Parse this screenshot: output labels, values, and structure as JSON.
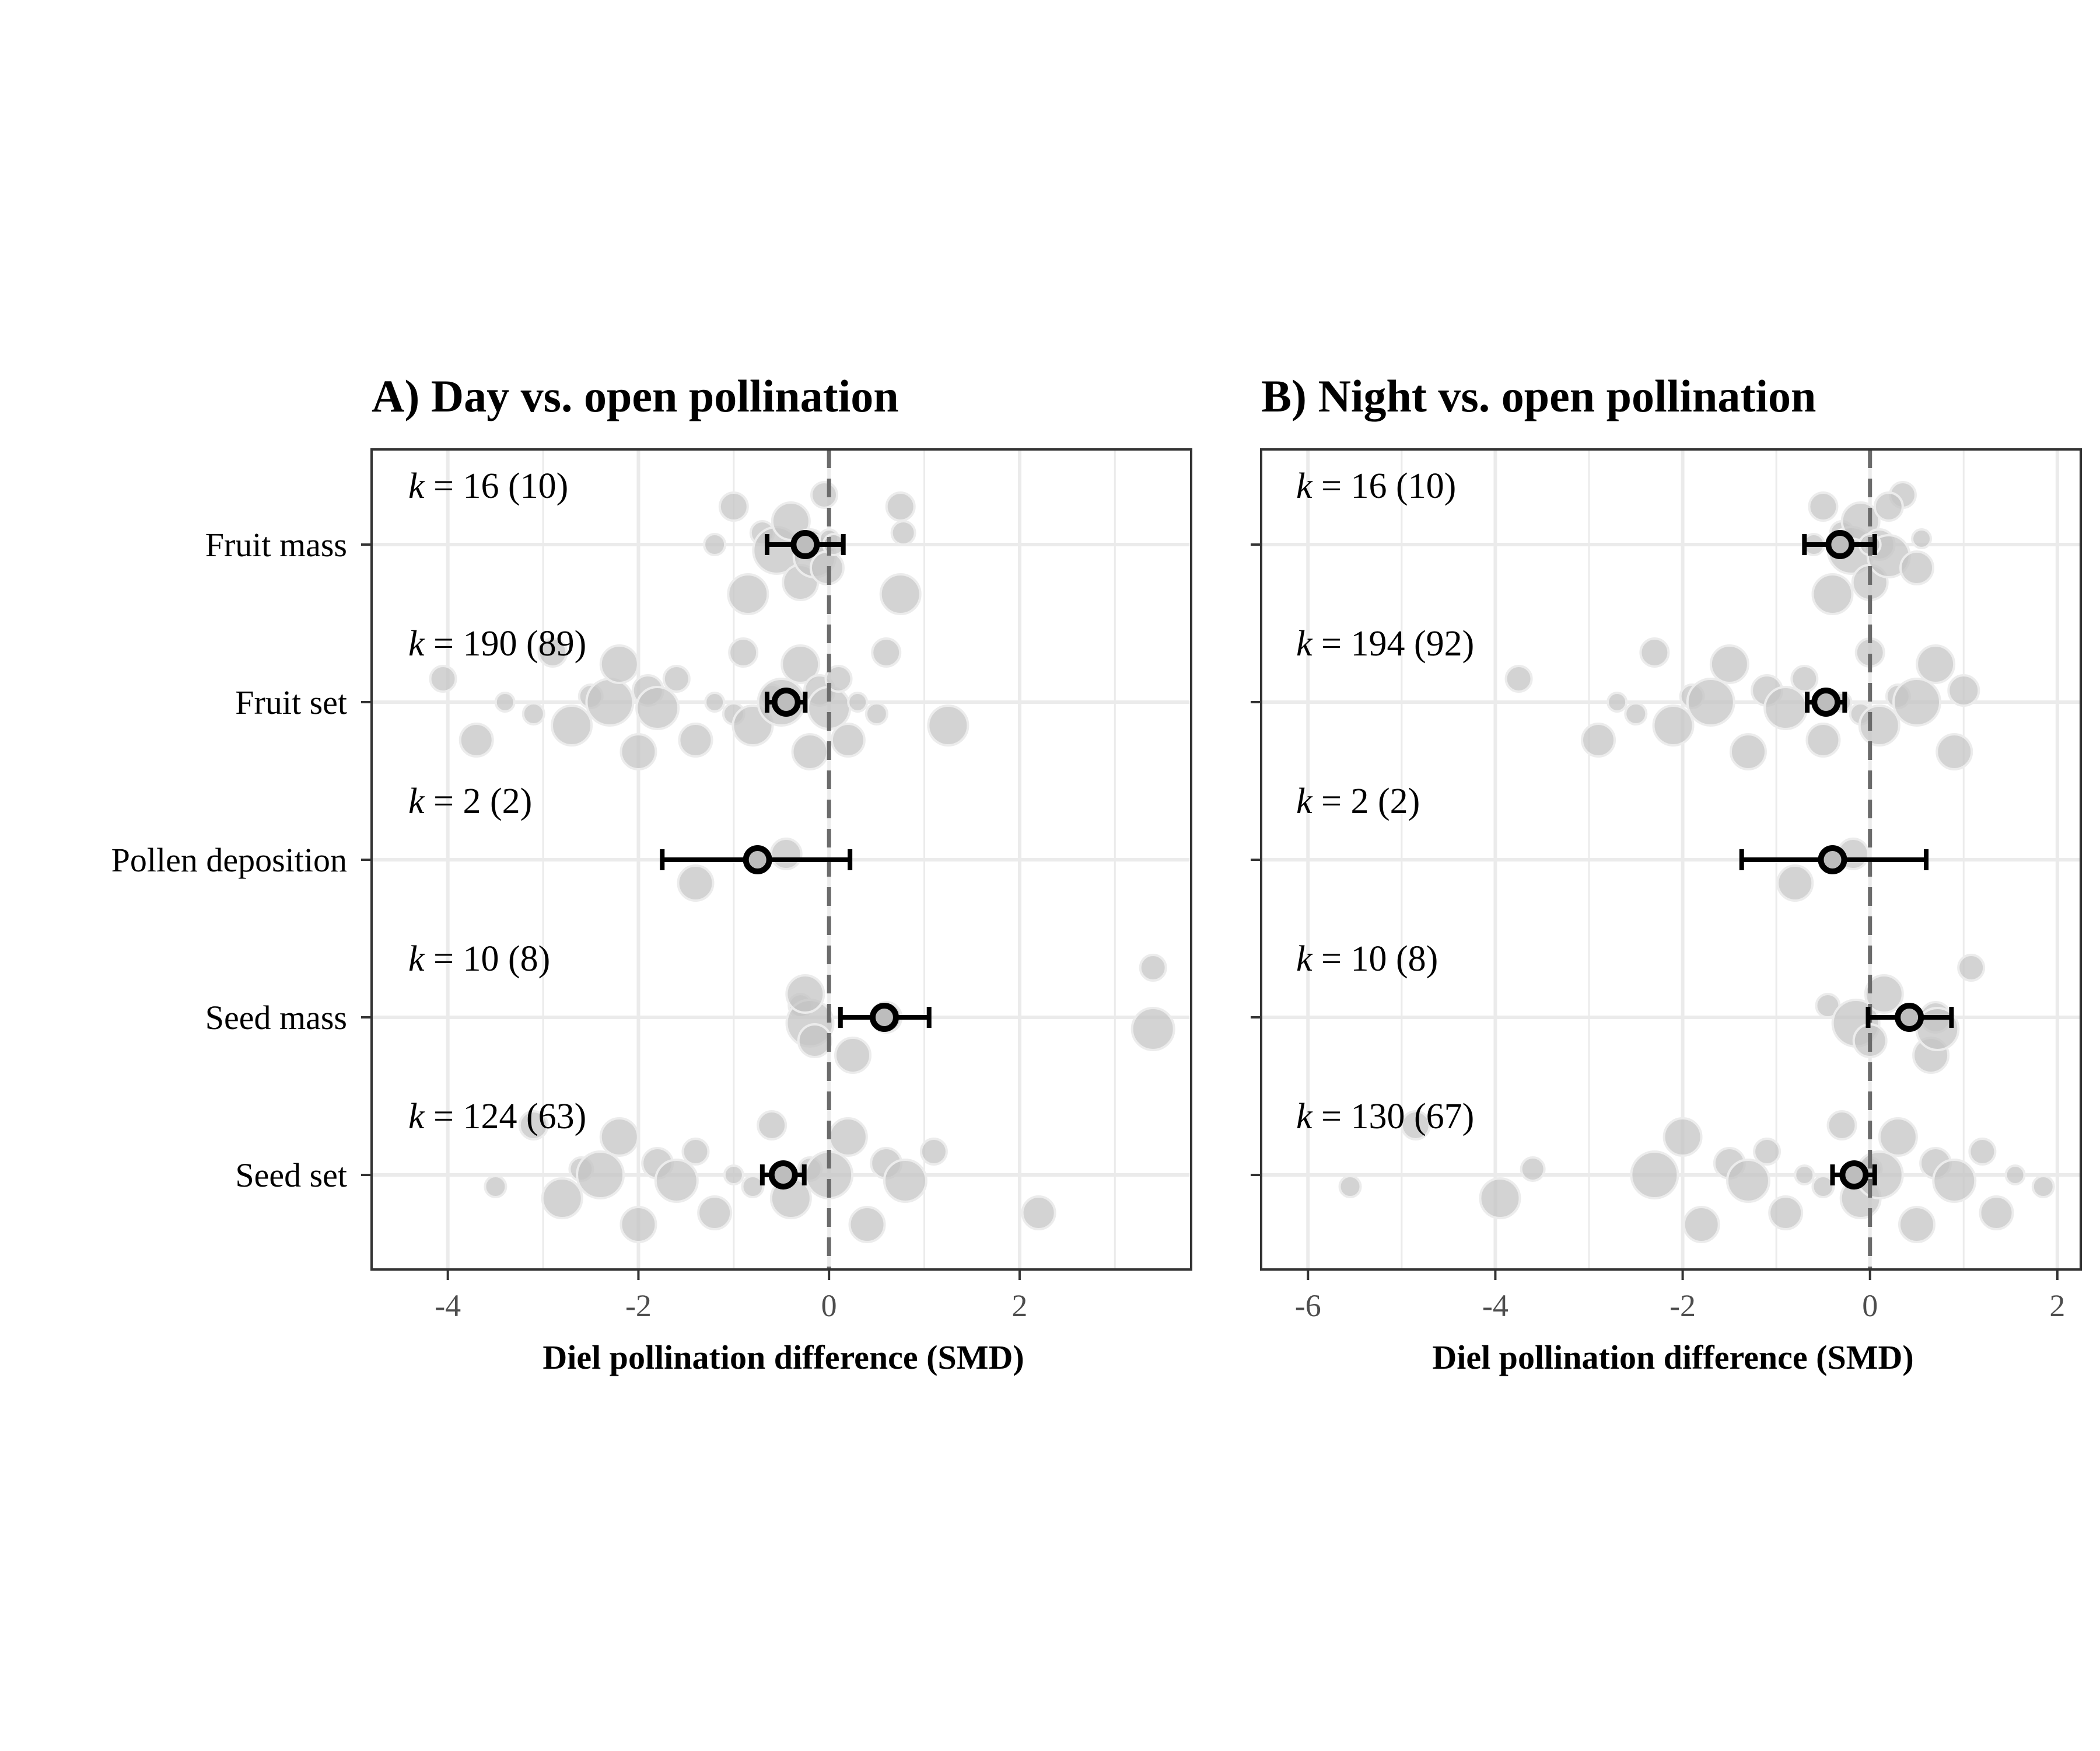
{
  "chart_data": [
    {
      "type": "scatter",
      "title": "A) Day vs. open pollination",
      "xlabel": "Diel pollination difference (SMD)",
      "ylabel": "",
      "xlim": [
        -4.8,
        3.8
      ],
      "xticks": [
        "-4",
        "-2",
        "0",
        "2"
      ],
      "xtick_values": [
        -4,
        -2,
        0,
        2
      ],
      "reference_line": 0,
      "categories": [
        "Fruit mass",
        "Fruit set",
        "Pollen deposition",
        "Seed mass",
        "Seed set"
      ],
      "k_labels": [
        {
          "k": "16",
          "n": "(10)"
        },
        {
          "k": "190",
          "n": "(89)"
        },
        {
          "k": "2",
          "n": "(2)"
        },
        {
          "k": "10",
          "n": "(8)"
        },
        {
          "k": "124",
          "n": "(63)"
        }
      ],
      "estimates": [
        {
          "category": "Fruit mass",
          "mean": -0.25,
          "ci_low": -0.65,
          "ci_high": 0.15
        },
        {
          "category": "Fruit set",
          "mean": -0.45,
          "ci_low": -0.65,
          "ci_high": -0.25
        },
        {
          "category": "Pollen deposition",
          "mean": -0.75,
          "ci_low": -1.75,
          "ci_high": 0.22
        },
        {
          "category": "Seed mass",
          "mean": 0.58,
          "ci_low": 0.12,
          "ci_high": 1.05
        },
        {
          "category": "Seed set",
          "mean": -0.48,
          "ci_low": -0.7,
          "ci_high": -0.26
        }
      ],
      "effect_sizes": [
        {
          "category": "Fruit mass",
          "x": [
            -1.2,
            -1.0,
            -0.85,
            -0.7,
            -0.55,
            -0.4,
            -0.3,
            -0.2,
            -0.15,
            -0.05,
            -0.02,
            0.0,
            0.05,
            0.75,
            0.75,
            0.78
          ]
        },
        {
          "category": "Fruit set",
          "x": [
            -4.05,
            -3.7,
            -3.4,
            -3.1,
            -2.9,
            -2.7,
            -2.5,
            -2.3,
            -2.2,
            -2.0,
            -1.9,
            -1.8,
            -1.6,
            -1.4,
            -1.2,
            -1.0,
            -0.9,
            -0.8,
            -0.6,
            -0.5,
            -0.3,
            -0.2,
            -0.1,
            0.0,
            0.1,
            0.2,
            0.3,
            0.5,
            0.6,
            1.25
          ]
        },
        {
          "category": "Pollen deposition",
          "x": [
            -1.4,
            -0.45
          ]
        },
        {
          "category": "Seed mass",
          "x": [
            -0.3,
            -0.2,
            -0.25,
            0.25,
            0.6,
            3.4,
            3.4,
            -0.15
          ]
        },
        {
          "category": "Seed set",
          "x": [
            -3.5,
            -3.1,
            -2.8,
            -2.6,
            -2.4,
            -2.2,
            -2.0,
            -1.8,
            -1.6,
            -1.4,
            -1.2,
            -1.0,
            -0.8,
            -0.6,
            -0.4,
            -0.2,
            0.0,
            0.2,
            0.4,
            0.6,
            0.8,
            1.1,
            2.2
          ]
        }
      ]
    },
    {
      "type": "scatter",
      "title": "B) Night vs. open pollination",
      "xlabel": "Diel pollination difference (SMD)",
      "ylabel": "",
      "xlim": [
        -6.5,
        2.25
      ],
      "xticks": [
        "-6",
        "-4",
        "-2",
        "0",
        "2"
      ],
      "xtick_values": [
        -6,
        -4,
        -2,
        0,
        2
      ],
      "reference_line": 0,
      "categories": [
        "Fruit mass",
        "Fruit set",
        "Pollen deposition",
        "Seed mass",
        "Seed set"
      ],
      "k_labels": [
        {
          "k": "16",
          "n": "(10)"
        },
        {
          "k": "194",
          "n": "(92)"
        },
        {
          "k": "2",
          "n": "(2)"
        },
        {
          "k": "10",
          "n": "(8)"
        },
        {
          "k": "130",
          "n": "(67)"
        }
      ],
      "estimates": [
        {
          "category": "Fruit mass",
          "mean": -0.32,
          "ci_low": -0.7,
          "ci_high": 0.05
        },
        {
          "category": "Fruit set",
          "mean": -0.47,
          "ci_low": -0.67,
          "ci_high": -0.27
        },
        {
          "category": "Pollen deposition",
          "mean": -0.4,
          "ci_low": -1.37,
          "ci_high": 0.6
        },
        {
          "category": "Seed mass",
          "mean": 0.42,
          "ci_low": -0.02,
          "ci_high": 0.87
        },
        {
          "category": "Seed set",
          "mean": -0.17,
          "ci_low": -0.4,
          "ci_high": 0.05
        }
      ],
      "effect_sizes": [
        {
          "category": "Fruit mass",
          "x": [
            -0.6,
            -0.5,
            -0.4,
            -0.3,
            -0.2,
            -0.1,
            0.0,
            0.1,
            0.2,
            0.35,
            0.5,
            0.55,
            0.0,
            0.2
          ]
        },
        {
          "category": "Fruit set",
          "x": [
            -3.75,
            -2.9,
            -2.7,
            -2.5,
            -2.3,
            -2.1,
            -1.9,
            -1.7,
            -1.5,
            -1.3,
            -1.1,
            -0.9,
            -0.7,
            -0.5,
            -0.3,
            -0.1,
            0.0,
            0.1,
            0.3,
            0.5,
            0.7,
            0.9,
            1.0
          ]
        },
        {
          "category": "Pollen deposition",
          "x": [
            -0.8,
            -0.18
          ]
        },
        {
          "category": "Seed mass",
          "x": [
            -0.45,
            -0.15,
            0.15,
            0.65,
            0.7,
            0.72,
            1.08,
            0.0
          ]
        },
        {
          "category": "Seed set",
          "x": [
            -5.55,
            -4.85,
            -3.95,
            -3.6,
            -2.3,
            -2.0,
            -1.8,
            -1.5,
            -1.3,
            -1.1,
            -0.9,
            -0.7,
            -0.5,
            -0.3,
            -0.1,
            0.0,
            0.1,
            0.3,
            0.5,
            0.7,
            0.9,
            1.2,
            1.35,
            1.55,
            1.85
          ]
        }
      ]
    }
  ]
}
